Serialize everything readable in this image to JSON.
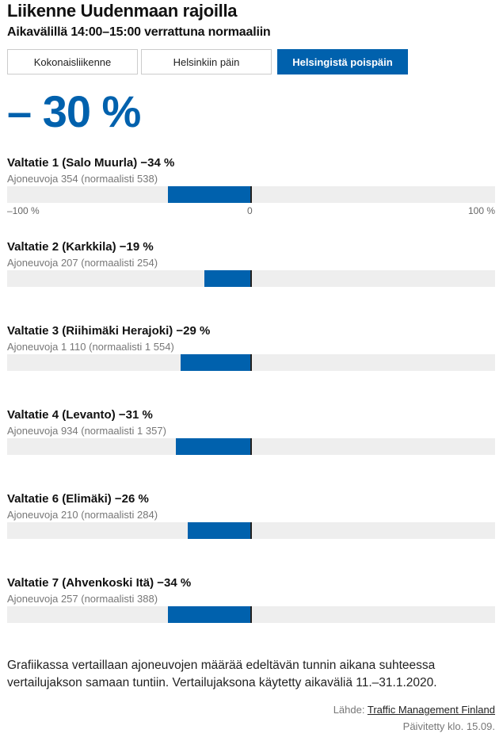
{
  "title": "Liikenne Uudenmaan rajoilla",
  "subtitle": "Aikavälillä 14:00–15:00 verrattuna normaaliin",
  "tabs": [
    {
      "label": "Kokonaisliikenne",
      "active": false
    },
    {
      "label": "Helsinkiin päin",
      "active": false
    },
    {
      "label": "Helsingistä poispäin",
      "active": true
    }
  ],
  "total": "– 30 %",
  "axis": {
    "min": "–100 %",
    "zero": "0",
    "max": "100 %"
  },
  "colors": {
    "accent": "#0061ad",
    "track": "#eeeeee"
  },
  "chart_data": {
    "type": "bar",
    "xlim": [
      -100,
      100
    ],
    "categories": [
      "Valtatie 1 (Salo Muurla)",
      "Valtatie 2 (Karkkila)",
      "Valtatie 3 (Riihimäki Herajoki)",
      "Valtatie 4 (Levanto)",
      "Valtatie 6 (Elimäki)",
      "Valtatie 7 (Ahvenkoski Itä)"
    ],
    "values": [
      -34,
      -19,
      -29,
      -31,
      -26,
      -34
    ],
    "rows": [
      {
        "title": "Valtatie 1 (Salo Muurla) −34 %",
        "sub": "Ajoneuvoja 354 (normaalisti 538)"
      },
      {
        "title": "Valtatie 2 (Karkkila) −19 %",
        "sub": "Ajoneuvoja 207 (normaalisti 254)"
      },
      {
        "title": "Valtatie 3 (Riihimäki Herajoki) −29 %",
        "sub": "Ajoneuvoja 1 110 (normaalisti 1 554)"
      },
      {
        "title": "Valtatie 4 (Levanto) −31 %",
        "sub": "Ajoneuvoja 934 (normaalisti 1 357)"
      },
      {
        "title": "Valtatie 6 (Elimäki) −26 %",
        "sub": "Ajoneuvoja 210 (normaalisti 284)"
      },
      {
        "title": "Valtatie 7 (Ahvenkoski Itä) −34 %",
        "sub": "Ajoneuvoja 257 (normaalisti 388)"
      }
    ]
  },
  "note": "Grafiikassa vertaillaan ajoneuvojen määrää edeltävän tunnin aikana suhteessa vertailujakson samaan tuntiin. Vertailujaksona käytetty aikaväliä 11.–31.1.2020.",
  "source_label": "Lähde:",
  "source_link": "Traffic Management Finland",
  "updated": "Päivitetty klo. 15.09."
}
